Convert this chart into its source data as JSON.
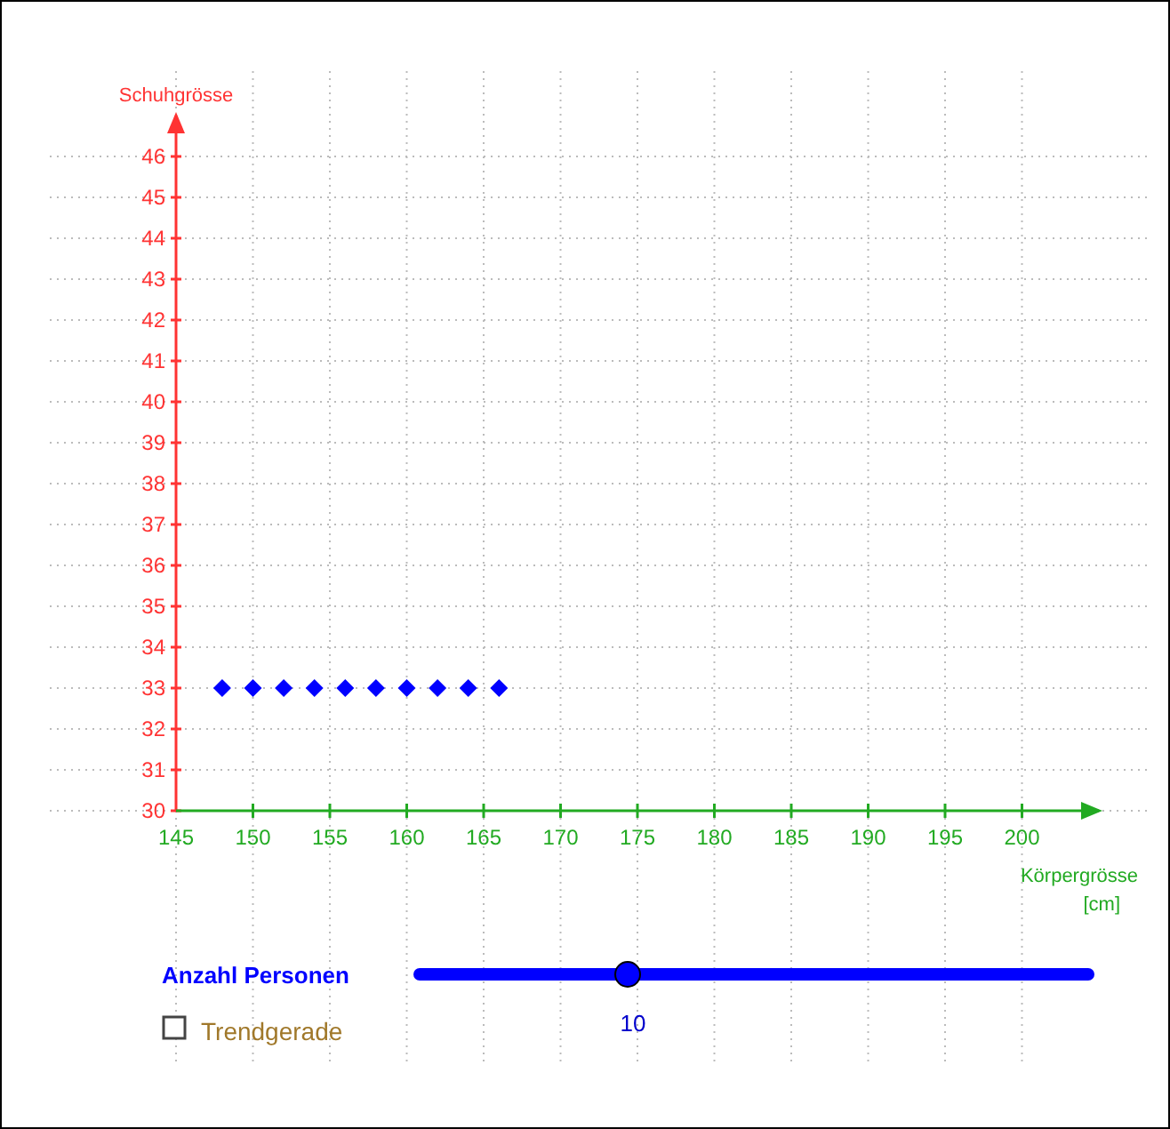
{
  "chart_data": {
    "type": "scatter",
    "xlabel": "Körpergrösse [cm]",
    "ylabel": "Schuhgrösse",
    "x": [
      148,
      150,
      152,
      154,
      156,
      158,
      160,
      162,
      164,
      166
    ],
    "series": [
      {
        "color": "#0000ff",
        "values": [
          33,
          33,
          33,
          33,
          33,
          33,
          33,
          33,
          33,
          33
        ]
      }
    ],
    "xlim": [
      145,
      205
    ],
    "ylim": [
      30,
      47
    ],
    "xticks": [
      145,
      150,
      155,
      160,
      165,
      170,
      175,
      180,
      185,
      190,
      195,
      200
    ],
    "yticks": [
      30,
      31,
      32,
      33,
      34,
      35,
      36,
      37,
      38,
      39,
      40,
      41,
      42,
      43,
      44,
      45,
      46
    ],
    "grid": true,
    "marker": "diamond",
    "annotations": [
      "Anzahl Personen",
      "10",
      "Trendgerade"
    ]
  }
}
